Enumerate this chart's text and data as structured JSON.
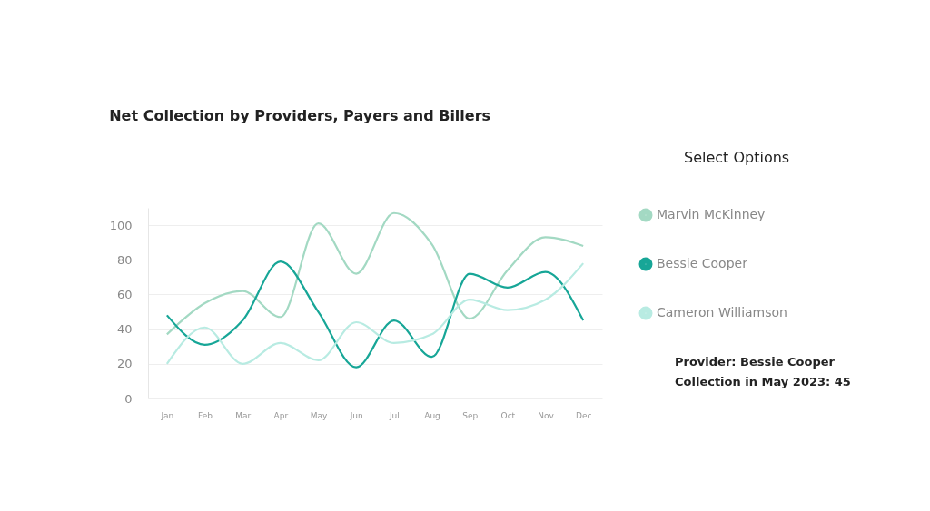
{
  "chart_data": {
    "type": "line",
    "title": "Net Collection by Providers, Payers and Billers",
    "categories": [
      "Jan",
      "Feb",
      "Mar",
      "Apr",
      "May",
      "Jun",
      "Jul",
      "Aug",
      "Sep",
      "Oct",
      "Nov",
      "Dec"
    ],
    "series": [
      {
        "name": "Marvin McKinney",
        "color": "#a3d9c3",
        "values": [
          37,
          55,
          62,
          47,
          101,
          72,
          107,
          89,
          46,
          74,
          93,
          88
        ]
      },
      {
        "name": "Bessie Cooper",
        "color": "#17a697",
        "values": [
          48,
          31,
          45,
          79,
          50,
          18,
          45,
          24,
          72,
          64,
          73,
          45
        ]
      },
      {
        "name": "Cameron Williamson",
        "color": "#b8ebe2",
        "values": [
          20,
          41,
          20,
          32,
          22,
          44,
          32,
          37,
          57,
          51,
          57,
          78
        ]
      }
    ],
    "ylim": [
      0,
      110
    ],
    "yticks": [
      0,
      20,
      40,
      60,
      80,
      100
    ],
    "grid": "y",
    "legend": "right",
    "marker": "none",
    "line_style": "solid",
    "annotations": [
      "Select Options",
      "Provider: Bessie Cooper",
      "Collection in May 2023: 45"
    ]
  }
}
